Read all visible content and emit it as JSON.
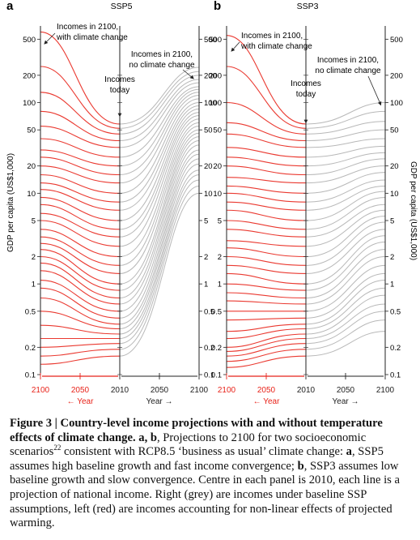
{
  "figure": {
    "panel_a": {
      "letter": "a",
      "title": "SSP5"
    },
    "panel_b": {
      "letter": "b",
      "title": "SSP3"
    },
    "annotations": {
      "with_cc": [
        "Incomes in 2100,",
        "with climate change"
      ],
      "today": [
        "Incomes",
        "today"
      ],
      "no_cc": [
        "Incomes in 2100,",
        "no climate change"
      ]
    },
    "ylabel": "GDP per capita (US$1,000)",
    "year_label_left": "← Year",
    "year_label_right": "Year →"
  },
  "colors": {
    "with_climate_change": "#e8231a",
    "no_climate_change": "#b4b4b4",
    "axis": "#222222"
  },
  "chart_data": [
    {
      "type": "line",
      "title": "SSP5",
      "yscale": "log",
      "ylim": [
        0.1,
        700
      ],
      "yticks": [
        0.1,
        0.2,
        0.5,
        1,
        2,
        5,
        10,
        20,
        50,
        100,
        200,
        500
      ],
      "ytick_labels": [
        "0.1",
        "0.2",
        "0.5",
        "1",
        "2",
        "5",
        "10",
        "20",
        "50",
        "100",
        "200",
        "500"
      ],
      "ylabel": "GDP per capita (US$1,000)",
      "x_left": {
        "ticks": [
          2100,
          2050,
          2010
        ],
        "label": "← Year"
      },
      "x_right": {
        "ticks": [
          2010,
          2050,
          2100
        ],
        "label": "Year →"
      },
      "income_today": [
        0.16,
        0.19,
        0.22,
        0.25,
        0.28,
        0.32,
        0.36,
        0.42,
        0.5,
        0.6,
        0.7,
        0.85,
        1.0,
        1.3,
        1.6,
        2.0,
        2.6,
        3.3,
        4.0,
        5.0,
        6.5,
        8.0,
        10,
        13,
        16,
        20,
        25,
        32,
        38,
        45,
        52,
        58
      ],
      "income_2100_no_climate_change": [
        10,
        12,
        14,
        16,
        18,
        21,
        24,
        27,
        30,
        34,
        38,
        42,
        46,
        50,
        55,
        60,
        66,
        72,
        78,
        85,
        92,
        100,
        110,
        120,
        130,
        140,
        150,
        165,
        180,
        200,
        220,
        245
      ],
      "income_2100_with_climate_change": [
        0.13,
        0.16,
        0.2,
        0.25,
        0.35,
        0.5,
        0.7,
        0.9,
        1.1,
        1.4,
        1.7,
        2.0,
        2.4,
        2.8,
        3.3,
        4.0,
        5.0,
        6.0,
        7.5,
        9.0,
        11,
        13,
        16,
        20,
        25,
        30,
        40,
        55,
        80,
        130,
        250,
        600
      ],
      "series": [
        {
          "name": "Incomes in 2100, no climate change",
          "color": "#b4b4b4"
        },
        {
          "name": "Incomes in 2100, with climate change",
          "color": "#e8231a"
        }
      ]
    },
    {
      "type": "line",
      "title": "SSP3",
      "yscale": "log",
      "ylim": [
        0.1,
        700
      ],
      "yticks": [
        0.1,
        0.2,
        0.5,
        1,
        2,
        5,
        10,
        20,
        50,
        100,
        200,
        500
      ],
      "ytick_labels": [
        "0.1",
        "0.2",
        "0.5",
        "1",
        "2",
        "5",
        "10",
        "20",
        "50",
        "100",
        "200",
        "500"
      ],
      "ylabel": "GDP per capita (US$1,000)",
      "x_left": {
        "ticks": [
          2100,
          2050,
          2010
        ],
        "label": "← Year"
      },
      "x_right": {
        "ticks": [
          2010,
          2050,
          2100
        ],
        "label": "Year →"
      },
      "income_today": [
        0.16,
        0.19,
        0.22,
        0.25,
        0.28,
        0.32,
        0.36,
        0.42,
        0.5,
        0.6,
        0.7,
        0.85,
        1.0,
        1.3,
        1.6,
        2.0,
        2.6,
        3.3,
        4.0,
        5.0,
        6.5,
        8.0,
        10,
        13,
        16,
        20,
        25,
        32,
        38,
        45,
        52,
        58
      ],
      "income_2100_no_climate_change": [
        0.3,
        0.4,
        0.5,
        0.6,
        0.75,
        0.9,
        1.1,
        1.3,
        1.6,
        2.0,
        2.4,
        2.9,
        3.4,
        4.0,
        4.8,
        5.6,
        6.5,
        7.5,
        9.0,
        10.5,
        12,
        14,
        17,
        20,
        24,
        28,
        33,
        40,
        50,
        62,
        80,
        100
      ],
      "income_2100_with_climate_change": [
        0.12,
        0.14,
        0.16,
        0.18,
        0.2,
        0.25,
        0.3,
        0.4,
        0.5,
        0.65,
        0.8,
        1.0,
        1.3,
        1.6,
        2.0,
        2.5,
        3.0,
        4.0,
        5.0,
        6.5,
        8.0,
        10,
        12,
        15,
        20,
        25,
        32,
        45,
        60,
        100,
        250,
        550
      ],
      "series": [
        {
          "name": "Incomes in 2100, no climate change",
          "color": "#b4b4b4"
        },
        {
          "name": "Incomes in 2100, with climate change",
          "color": "#e8231a"
        }
      ]
    }
  ],
  "caption": {
    "title": "Figure 3 | Country-level income projections with and without temperature effects of climate change.",
    "text_parts": [
      "a, b",
      ", Projections to 2100 for two socioeconomic scenarios",
      "22",
      " consistent with RCP8.5 ‘business as usual’ climate change: ",
      "a",
      ", SSP5 assumes high baseline growth and fast income convergence; ",
      "b",
      ", SSP3 assumes low baseline growth and slow convergence. Centre in each panel is 2010, each line is a projection of national income. Right (grey) are incomes under baseline SSP assumptions, left (red) are incomes accounting for non-linear effects of projected warming."
    ]
  }
}
